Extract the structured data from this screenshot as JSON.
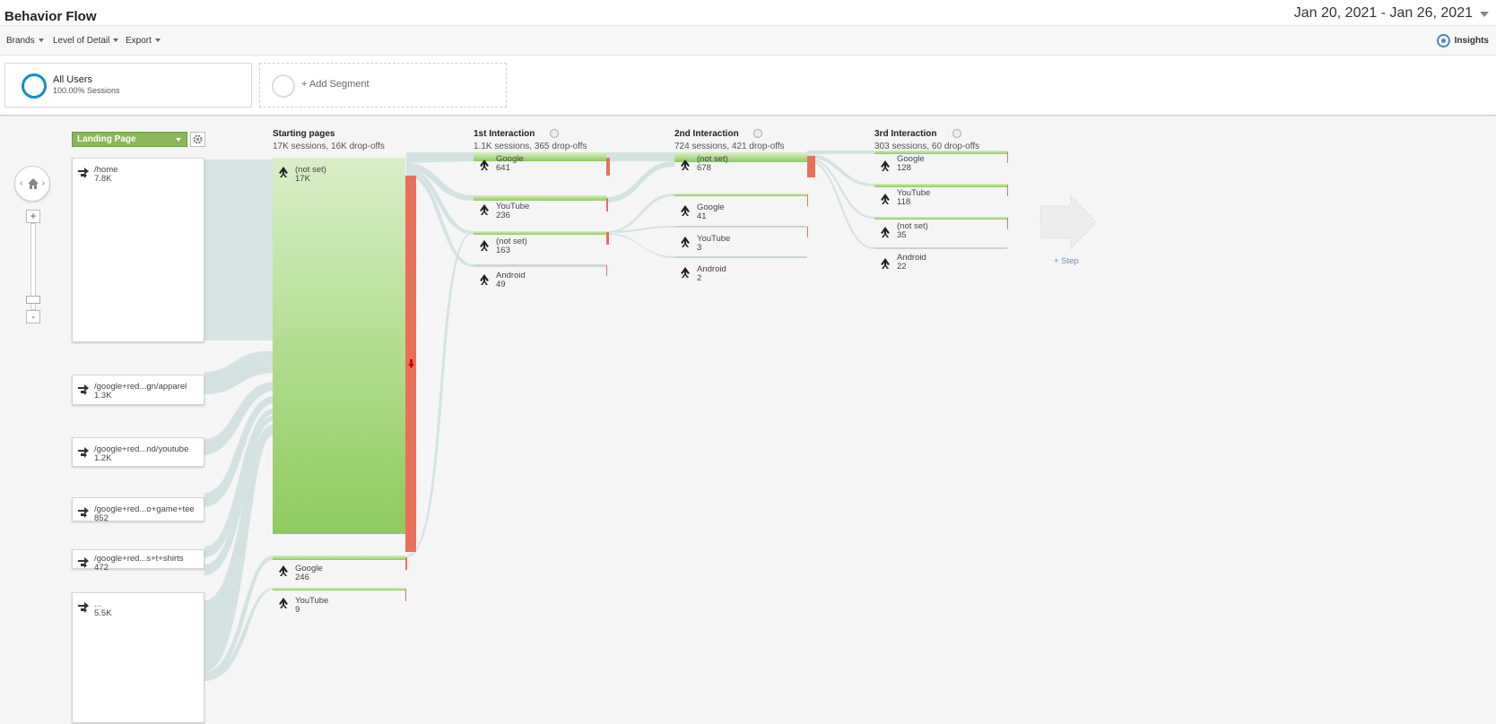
{
  "header": {
    "title": "Behavior Flow",
    "date_range": "Jan 20, 2021 - Jan 26, 2021"
  },
  "toolbar": {
    "brands": "Brands",
    "level_of_detail": "Level of Detail",
    "export": "Export",
    "insights": "Insights"
  },
  "segments": {
    "all_users": "All Users",
    "all_users_sub": "100.00% Sessions",
    "add_segment": "+ Add Segment"
  },
  "dimension": {
    "selected": "Landing Page"
  },
  "columns": [
    {
      "title": "Starting pages",
      "sub": "17K sessions, 16K drop-offs"
    },
    {
      "title": "1st Interaction",
      "sub": "1.1K sessions, 365 drop-offs"
    },
    {
      "title": "2nd Interaction",
      "sub": "724 sessions, 421 drop-offs"
    },
    {
      "title": "3rd Interaction",
      "sub": "303 sessions, 60 drop-offs"
    }
  ],
  "landing_pages": [
    {
      "label": "/home",
      "value": "7.8K"
    },
    {
      "label": "/google+red...gn/apparel",
      "value": "1.3K"
    },
    {
      "label": "/google+red...nd/youtube",
      "value": "1.2K"
    },
    {
      "label": "/google+red...o+game+tee",
      "value": "852"
    },
    {
      "label": "/google+red...s+t+shirts",
      "value": "472"
    },
    {
      "label": "...",
      "value": "5.5K"
    }
  ],
  "starting_pages": [
    {
      "label": "(not set)",
      "value": "17K"
    },
    {
      "label": "Google",
      "value": "246"
    },
    {
      "label": "YouTube",
      "value": "9"
    }
  ],
  "interaction_1": [
    {
      "label": "Google",
      "value": "641"
    },
    {
      "label": "YouTube",
      "value": "236"
    },
    {
      "label": "(not set)",
      "value": "163"
    },
    {
      "label": "Android",
      "value": "49"
    }
  ],
  "interaction_2": [
    {
      "label": "(not set)",
      "value": "678"
    },
    {
      "label": "Google",
      "value": "41"
    },
    {
      "label": "YouTube",
      "value": "3"
    },
    {
      "label": "Android",
      "value": "2"
    }
  ],
  "interaction_3": [
    {
      "label": "Google",
      "value": "128"
    },
    {
      "label": "YouTube",
      "value": "118"
    },
    {
      "label": "(not set)",
      "value": "35"
    },
    {
      "label": "Android",
      "value": "22"
    }
  ],
  "add_step": "+ Step",
  "colors": {
    "node_green": "#8dcb5c",
    "dropoff": "#e8705b",
    "flow": "#d0dfe1",
    "segment_ring": "#0d8fc7"
  },
  "icons": {
    "landing": "arrow-split-icon",
    "interaction": "person-walk-icon"
  }
}
